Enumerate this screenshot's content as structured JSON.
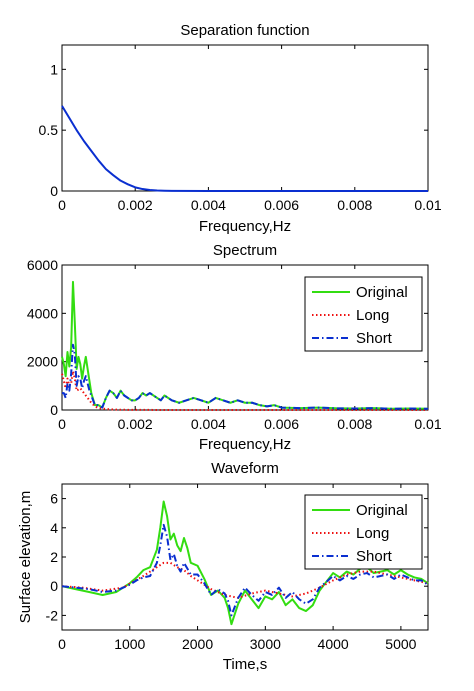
{
  "colors": {
    "axis": "#000000",
    "background": "#ffffff"
  },
  "chart_data": [
    {
      "type": "line",
      "title": "Separation function",
      "xlabel": "Frequency,Hz",
      "ylabel": "",
      "xlim": [
        0,
        0.01
      ],
      "ylim": [
        0,
        1.2
      ],
      "xticks": [
        "0",
        "0.002",
        "0.004",
        "0.006",
        "0.008",
        "0.01"
      ],
      "yticks": [
        "0",
        "0.5",
        "1"
      ],
      "grid": false,
      "legend": null,
      "series": [
        {
          "color": "#0a2fd0",
          "style": "solid",
          "x": [
            0,
            0.0002,
            0.0004,
            0.0006,
            0.0008,
            0.001,
            0.0012,
            0.0014,
            0.0016,
            0.0018,
            0.002,
            0.0022,
            0.0024,
            0.0026,
            0.0028,
            0.003,
            0.004,
            0.006,
            0.008,
            0.01
          ],
          "y": [
            0.7,
            0.6,
            0.5,
            0.41,
            0.33,
            0.25,
            0.18,
            0.13,
            0.085,
            0.055,
            0.03,
            0.016,
            0.008,
            0.004,
            0.002,
            0.001,
            0,
            0,
            0,
            0
          ]
        }
      ]
    },
    {
      "type": "line",
      "title": "Spectrum",
      "xlabel": "Frequency,Hz",
      "ylabel": "",
      "xlim": [
        0,
        0.01
      ],
      "ylim": [
        0,
        6000
      ],
      "xticks": [
        "0",
        "0.002",
        "0.004",
        "0.006",
        "0.008",
        "0.01"
      ],
      "yticks": [
        "0",
        "2000",
        "4000",
        "6000"
      ],
      "grid": false,
      "legend": "top-right",
      "series": [
        {
          "name": "Original",
          "color": "#33dd11",
          "style": "solid",
          "x": [
            0,
            5e-05,
            0.0001,
            0.00015,
            0.0002,
            0.00025,
            0.0003,
            0.00035,
            0.0004,
            0.00045,
            0.0005,
            0.00055,
            0.0006,
            0.00065,
            0.0007,
            0.00075,
            0.0008,
            0.0009,
            0.001,
            0.0011,
            0.0012,
            0.0013,
            0.0014,
            0.0015,
            0.0016,
            0.0017,
            0.0018,
            0.0019,
            0.002,
            0.0021,
            0.0022,
            0.0023,
            0.0024,
            0.0025,
            0.0026,
            0.0027,
            0.0028,
            0.003,
            0.0032,
            0.0034,
            0.0036,
            0.0038,
            0.004,
            0.0042,
            0.0044,
            0.0046,
            0.0048,
            0.005,
            0.0052,
            0.0054,
            0.0056,
            0.0058,
            0.006,
            0.0065,
            0.007,
            0.0075,
            0.008,
            0.0085,
            0.009,
            0.0095,
            0.01
          ],
          "y": [
            2200,
            1900,
            1400,
            2400,
            1800,
            2600,
            5300,
            3600,
            1700,
            2200,
            1900,
            1300,
            1800,
            2200,
            1700,
            1200,
            700,
            200,
            200,
            100,
            500,
            800,
            700,
            500,
            800,
            600,
            500,
            400,
            400,
            500,
            700,
            600,
            700,
            600,
            500,
            400,
            600,
            400,
            300,
            400,
            500,
            400,
            300,
            500,
            400,
            300,
            400,
            300,
            300,
            200,
            150,
            200,
            100,
            80,
            100,
            70,
            60,
            80,
            50,
            60,
            50
          ]
        },
        {
          "name": "Long",
          "color": "#ee1111",
          "style": "dotted",
          "x": [
            0,
            5e-05,
            0.0001,
            0.00015,
            0.0002,
            0.00025,
            0.0003,
            0.00035,
            0.0004,
            0.0005,
            0.0006,
            0.0007,
            0.0008,
            0.0009,
            0.001,
            0.0012,
            0.0014,
            0.0016,
            0.002,
            0.003,
            0.004,
            0.006,
            0.008,
            0.01
          ],
          "y": [
            1500,
            1200,
            900,
            1300,
            1000,
            1100,
            1600,
            1300,
            800,
            900,
            700,
            500,
            300,
            150,
            80,
            40,
            20,
            10,
            5,
            0,
            0,
            0,
            0,
            0
          ]
        },
        {
          "name": "Short",
          "color": "#0a2fd0",
          "style": "dashdot",
          "x": [
            0,
            5e-05,
            0.0001,
            0.00015,
            0.0002,
            0.00025,
            0.0003,
            0.00035,
            0.0004,
            0.00045,
            0.0005,
            0.00055,
            0.0006,
            0.00065,
            0.0007,
            0.00075,
            0.0008,
            0.0009,
            0.001,
            0.0011,
            0.0012,
            0.0013,
            0.0014,
            0.0015,
            0.0016,
            0.0017,
            0.0018,
            0.0019,
            0.002,
            0.0021,
            0.0022,
            0.0023,
            0.0024,
            0.0025,
            0.0026,
            0.0027,
            0.0028,
            0.003,
            0.0032,
            0.0034,
            0.0036,
            0.0038,
            0.004,
            0.0042,
            0.0044,
            0.0046,
            0.0048,
            0.005,
            0.0052,
            0.0054,
            0.0056,
            0.0058,
            0.006,
            0.0065,
            0.007,
            0.0075,
            0.008,
            0.0085,
            0.009,
            0.0095,
            0.01
          ],
          "y": [
            700,
            700,
            500,
            1100,
            800,
            1500,
            2700,
            2300,
            1000,
            1400,
            1300,
            900,
            1200,
            1400,
            1100,
            800,
            600,
            200,
            200,
            100,
            500,
            800,
            700,
            500,
            800,
            600,
            500,
            400,
            400,
            500,
            700,
            600,
            700,
            600,
            500,
            400,
            600,
            400,
            300,
            400,
            500,
            400,
            300,
            500,
            400,
            300,
            400,
            300,
            300,
            200,
            150,
            200,
            100,
            80,
            100,
            70,
            60,
            80,
            50,
            60,
            50
          ]
        }
      ]
    },
    {
      "type": "line",
      "title": "Waveform",
      "xlabel": "Time,s",
      "ylabel": "Surface elevation,m",
      "xlim": [
        0,
        5400
      ],
      "ylim": [
        -3,
        7
      ],
      "xticks": [
        "0",
        "1000",
        "2000",
        "3000",
        "4000",
        "5000"
      ],
      "yticks": [
        "-2",
        "0",
        "2",
        "4",
        "6"
      ],
      "grid": false,
      "legend": "top-right",
      "series": [
        {
          "name": "Original",
          "color": "#33dd11",
          "style": "solid",
          "x": [
            0,
            200,
            400,
            600,
            800,
            1000,
            1100,
            1200,
            1300,
            1400,
            1450,
            1500,
            1550,
            1600,
            1650,
            1700,
            1750,
            1800,
            1850,
            1900,
            2000,
            2100,
            2200,
            2300,
            2400,
            2450,
            2500,
            2600,
            2700,
            2800,
            2900,
            3000,
            3100,
            3200,
            3300,
            3400,
            3500,
            3600,
            3700,
            3800,
            3900,
            4000,
            4100,
            4200,
            4300,
            4400,
            4500,
            4600,
            4700,
            4800,
            4900,
            5000,
            5100,
            5200,
            5300,
            5400
          ],
          "y": [
            0,
            -0.2,
            -0.4,
            -0.6,
            -0.4,
            0.2,
            0.6,
            1.1,
            1.3,
            2.5,
            4.0,
            5.8,
            4.8,
            3.2,
            3.6,
            2.8,
            2.4,
            3.3,
            2.6,
            1.6,
            1.4,
            0.5,
            -0.6,
            -0.3,
            -0.8,
            -1.5,
            -2.6,
            -1.2,
            -0.3,
            -0.9,
            -1.5,
            -0.7,
            -0.9,
            -0.4,
            -1.3,
            -0.9,
            -1.5,
            -1.7,
            -1.3,
            -0.3,
            0.3,
            0.9,
            0.6,
            1.0,
            0.8,
            1.2,
            1.3,
            0.9,
            1.0,
            1.1,
            0.8,
            1.1,
            0.8,
            0.6,
            0.5,
            0.2
          ]
        },
        {
          "name": "Long",
          "color": "#ee1111",
          "style": "dotted",
          "x": [
            0,
            300,
            600,
            900,
            1200,
            1400,
            1500,
            1600,
            1700,
            1800,
            1900,
            2000,
            2200,
            2400,
            2600,
            2800,
            3000,
            3200,
            3400,
            3600,
            3800,
            4000,
            4200,
            4400,
            4600,
            4800,
            5000,
            5200,
            5400
          ],
          "y": [
            0,
            -0.1,
            -0.3,
            -0.1,
            0.7,
            1.3,
            1.6,
            1.6,
            1.3,
            1.1,
            0.7,
            0.4,
            -0.2,
            -0.6,
            -0.8,
            -0.5,
            -0.3,
            -0.5,
            -0.7,
            -0.5,
            -0.1,
            0.4,
            0.8,
            1.0,
            1.0,
            0.8,
            0.6,
            0.4,
            0.2
          ]
        },
        {
          "name": "Short",
          "color": "#0a2fd0",
          "style": "dashdot",
          "x": [
            0,
            200,
            400,
            600,
            800,
            1000,
            1100,
            1200,
            1300,
            1400,
            1450,
            1500,
            1550,
            1600,
            1650,
            1700,
            1750,
            1800,
            1850,
            1900,
            2000,
            2100,
            2200,
            2300,
            2400,
            2450,
            2500,
            2600,
            2700,
            2800,
            2900,
            3000,
            3100,
            3200,
            3300,
            3400,
            3500,
            3600,
            3700,
            3800,
            3900,
            4000,
            4100,
            4200,
            4300,
            4400,
            4500,
            4600,
            4700,
            4800,
            4900,
            5000,
            5100,
            5200,
            5300,
            5400
          ],
          "y": [
            0,
            -0.1,
            -0.2,
            -0.4,
            -0.3,
            0.1,
            0.4,
            0.6,
            0.7,
            1.6,
            2.8,
            4.2,
            3.4,
            1.8,
            2.2,
            1.4,
            1.0,
            1.6,
            1.2,
            0.8,
            0.8,
            0.2,
            -0.6,
            -0.2,
            -0.5,
            -1.0,
            -2.0,
            -0.8,
            -0.1,
            -0.6,
            -1.0,
            -0.4,
            -0.6,
            -0.1,
            -0.8,
            -0.4,
            -0.9,
            -1.2,
            -0.9,
            -0.1,
            0.3,
            0.7,
            0.4,
            0.7,
            0.5,
            0.8,
            0.9,
            0.6,
            0.7,
            0.8,
            0.5,
            0.8,
            0.6,
            0.4,
            0.4,
            0.1
          ]
        }
      ]
    }
  ]
}
